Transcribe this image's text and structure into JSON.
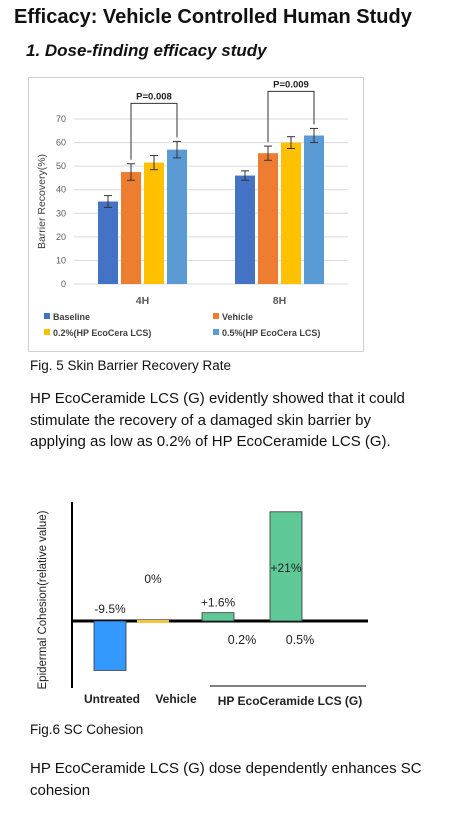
{
  "header": {
    "title": "Efficacy: Vehicle Controlled Human Study",
    "subtitle": "1. Dose-finding efficacy study"
  },
  "figure5": {
    "caption": "Fig. 5 Skin Barrier Recovery Rate",
    "paragraph": "HP EcoCeramide LCS (G) evidently showed that it could stimulate the recovery of a damaged skin barrier by applying as low as 0.2%  of HP EcoCeramide LCS (G)."
  },
  "figure6": {
    "caption": "Fig.6  SC Cohesion",
    "paragraph": "HP EcoCeramide LCS (G) dose dependently enhances SC cohesion"
  },
  "chart_data": [
    {
      "type": "bar",
      "title": "",
      "xlabel": "",
      "ylabel": "Barrier Recovery(%)",
      "ylim": [
        0,
        70
      ],
      "yticks": [
        "0",
        "10",
        "20",
        "30",
        "40",
        "50",
        "60",
        "70"
      ],
      "categories": [
        "4H",
        "8H"
      ],
      "series": [
        {
          "name": "Baseline",
          "values": [
            35,
            46
          ],
          "errors": [
            2.5,
            2
          ],
          "color": "#4472c4"
        },
        {
          "name": "Vehicle",
          "values": [
            47.5,
            55.5
          ],
          "errors": [
            3.5,
            3
          ],
          "color": "#ed7d31"
        },
        {
          "name": "0.2%(HP EcoCera LCS)",
          "values": [
            51.5,
            60
          ],
          "errors": [
            3,
            2.5
          ],
          "color": "#ffc000"
        },
        {
          "name": "0.5%(HP EcoCera LCS)",
          "values": [
            57,
            63
          ],
          "errors": [
            3.5,
            3
          ],
          "color": "#5b9bd5"
        }
      ],
      "annotations": [
        {
          "text": "P=0.008",
          "category": "4H",
          "from_series": 1,
          "to_series": 3
        },
        {
          "text": "P=0.009",
          "category": "8H",
          "from_series": 1,
          "to_series": 3
        }
      ],
      "grid": true,
      "legend": "bottom"
    },
    {
      "type": "bar",
      "title": "",
      "ylabel": "Epidermal Cohesion(relative value)",
      "categories": [
        "Untreated",
        "Vehicle",
        "0.2%",
        "0.5%"
      ],
      "values": [
        -9.5,
        0,
        1.6,
        21
      ],
      "value_labels": [
        "-9.5%",
        "0%",
        "+1.6%",
        "+21%"
      ],
      "colors": [
        "#3399ff",
        "#f5c542",
        "#5ec996",
        "#5ec996"
      ],
      "group_label": "HP EcoCeramide LCS (G)",
      "grid": false,
      "legend": "none"
    }
  ]
}
